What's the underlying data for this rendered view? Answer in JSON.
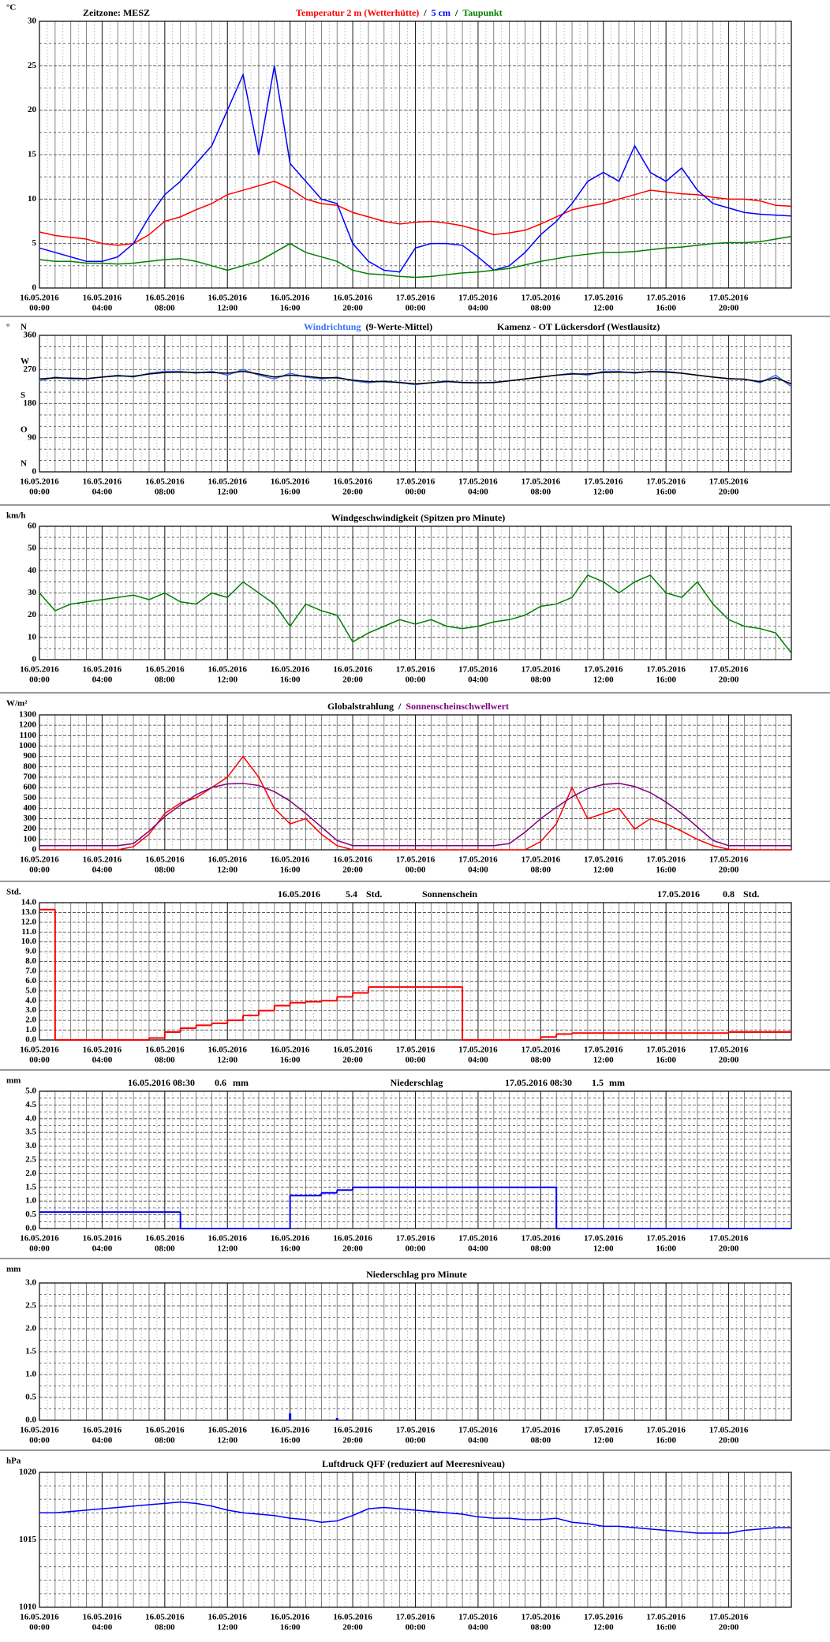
{
  "time_axis": {
    "xlim": [
      0,
      48
    ],
    "x": [
      0,
      1,
      2,
      3,
      4,
      5,
      6,
      7,
      8,
      9,
      10,
      11,
      12,
      13,
      14,
      15,
      16,
      17,
      18,
      19,
      20,
      21,
      22,
      23,
      24,
      25,
      26,
      27,
      28,
      29,
      30,
      31,
      32,
      33,
      34,
      35,
      36,
      37,
      38,
      39,
      40,
      41,
      42,
      43,
      44,
      45,
      46,
      47,
      48
    ],
    "xticks": [
      {
        "value": 0,
        "label": [
          "16.05.2016",
          "00:00"
        ]
      },
      {
        "value": 4,
        "label": [
          "16.05.2016",
          "04:00"
        ]
      },
      {
        "value": 8,
        "label": [
          "16.05.2016",
          "08:00"
        ]
      },
      {
        "value": 12,
        "label": [
          "16.05.2016",
          "12:00"
        ]
      },
      {
        "value": 16,
        "label": [
          "16.05.2016",
          "16:00"
        ]
      },
      {
        "value": 20,
        "label": [
          "16.05.2016",
          "20:00"
        ]
      },
      {
        "value": 24,
        "label": [
          "17.05.2016",
          "00:00"
        ]
      },
      {
        "value": 28,
        "label": [
          "17.05.2016",
          "04:00"
        ]
      },
      {
        "value": 32,
        "label": [
          "17.05.2016",
          "08:00"
        ]
      },
      {
        "value": 36,
        "label": [
          "17.05.2016",
          "12:00"
        ]
      },
      {
        "value": 40,
        "label": [
          "17.05.2016",
          "16:00"
        ]
      },
      {
        "value": 44,
        "label": [
          "17.05.2016",
          "20:00"
        ]
      }
    ]
  },
  "chart_data": [
    {
      "type": "line",
      "unit": "°C",
      "timezone": "Zeitzone: MESZ",
      "title_separators": [
        "/",
        "/"
      ],
      "ylim": [
        0,
        30
      ],
      "yticks": [
        0,
        5,
        10,
        15,
        20,
        25,
        30
      ],
      "grid": true,
      "series": [
        {
          "name": "Temperatur 2 m (Wetterhütte)",
          "color": "#ff0000",
          "values": [
            6.3,
            5.9,
            5.7,
            5.5,
            5.0,
            4.8,
            5.0,
            6.0,
            7.5,
            8.0,
            8.8,
            9.5,
            10.5,
            11.0,
            11.5,
            12.0,
            11.2,
            10.0,
            9.5,
            9.3,
            8.5,
            8.0,
            7.5,
            7.2,
            7.4,
            7.5,
            7.3,
            7.0,
            6.5,
            6.0,
            6.2,
            6.5,
            7.2,
            8.0,
            8.8,
            9.2,
            9.5,
            10.0,
            10.5,
            11.0,
            10.8,
            10.6,
            10.5,
            10.2,
            10.0,
            10.0,
            9.8,
            9.3,
            9.2
          ]
        },
        {
          "name": "5 cm",
          "color": "#0000ff",
          "values": [
            4.5,
            4.0,
            3.5,
            3.0,
            3.0,
            3.5,
            5.0,
            8.0,
            10.5,
            12,
            14,
            16,
            20,
            24,
            15,
            25,
            14,
            12,
            10,
            9.5,
            5,
            3,
            2,
            1.8,
            4.5,
            5.0,
            5.0,
            4.8,
            3.5,
            2.0,
            2.5,
            4.0,
            6.0,
            7.5,
            9.5,
            12,
            13,
            12,
            16,
            13,
            12,
            13.5,
            11,
            9.5,
            9,
            8.5,
            8.3,
            8.2,
            8.1
          ]
        },
        {
          "name": "Taupunkt",
          "color": "#008000",
          "values": [
            3.2,
            3.0,
            3.0,
            2.8,
            2.8,
            2.7,
            2.8,
            3.0,
            3.2,
            3.3,
            3.0,
            2.5,
            2.0,
            2.5,
            3.0,
            4.0,
            5.0,
            4.0,
            3.5,
            3.0,
            2.0,
            1.6,
            1.5,
            1.3,
            1.2,
            1.3,
            1.5,
            1.7,
            1.8,
            2.0,
            2.2,
            2.6,
            3.0,
            3.3,
            3.6,
            3.8,
            4.0,
            4.0,
            4.1,
            4.3,
            4.5,
            4.6,
            4.8,
            5.0,
            5.1,
            5.1,
            5.2,
            5.5,
            5.8
          ]
        }
      ]
    },
    {
      "type": "line",
      "unit": "°",
      "subtitle": "Kamenz - OT Lückersdorf (Westlausitz)",
      "ylim": [
        0,
        360
      ],
      "yticks": [
        0,
        90,
        180,
        270,
        360
      ],
      "direction_labels": [
        "N",
        "O",
        "S",
        "W",
        "N"
      ],
      "grid": true,
      "series": [
        {
          "name": "Windrichtung",
          "color": "#3a6fff",
          "values": [
            240,
            250,
            245,
            245,
            250,
            255,
            250,
            260,
            265,
            265,
            260,
            265,
            255,
            270,
            255,
            245,
            260,
            250,
            245,
            250,
            240,
            235,
            240,
            235,
            230,
            235,
            240,
            235,
            235,
            235,
            240,
            245,
            250,
            255,
            260,
            255,
            265,
            265,
            260,
            265,
            265,
            260,
            255,
            250,
            245,
            245,
            235,
            255,
            225
          ]
        },
        {
          "name": "(9-Werte-Mittel)",
          "color": "#000000",
          "values": [
            245,
            248,
            247,
            246,
            250,
            253,
            252,
            258,
            262,
            263,
            262,
            262,
            260,
            265,
            258,
            250,
            255,
            252,
            248,
            248,
            242,
            238,
            238,
            236,
            232,
            235,
            238,
            236,
            235,
            236,
            240,
            245,
            250,
            255,
            258,
            258,
            262,
            263,
            262,
            264,
            263,
            260,
            255,
            250,
            246,
            244,
            238,
            248,
            232
          ]
        }
      ]
    },
    {
      "type": "line",
      "unit": "km/h",
      "title": "Windgeschwindigkeit (Spitzen pro Minute)",
      "ylim": [
        0,
        60
      ],
      "yticks": [
        0,
        10,
        20,
        30,
        40,
        50,
        60
      ],
      "grid": true,
      "color": "#008000",
      "values": [
        30,
        22,
        25,
        26,
        27,
        28,
        29,
        27,
        30,
        26,
        25,
        30,
        28,
        35,
        30,
        25,
        15,
        25,
        22,
        20,
        8,
        12,
        15,
        18,
        16,
        18,
        15,
        14,
        15,
        17,
        18,
        20,
        24,
        25,
        28,
        38,
        35,
        30,
        35,
        38,
        30,
        28,
        35,
        25,
        18,
        15,
        14,
        12,
        3
      ]
    },
    {
      "type": "line",
      "unit": "W/m²",
      "title_separators": [
        "/"
      ],
      "ylim": [
        0,
        1300
      ],
      "yticks": [
        0,
        100,
        200,
        300,
        400,
        500,
        600,
        700,
        800,
        900,
        1000,
        1100,
        1200,
        1300
      ],
      "grid": true,
      "series": [
        {
          "name": "Globalstrahlung",
          "color": "#ff0000",
          "values": [
            0,
            0,
            0,
            0,
            0,
            0,
            30,
            150,
            350,
            450,
            500,
            600,
            700,
            900,
            700,
            400,
            250,
            300,
            150,
            40,
            0,
            0,
            0,
            0,
            0,
            0,
            0,
            0,
            0,
            0,
            0,
            0,
            80,
            250,
            600,
            300,
            350,
            400,
            200,
            300,
            250,
            180,
            100,
            40,
            5,
            0,
            0,
            0,
            0
          ]
        },
        {
          "name": "Sonnenscheinschwellwert",
          "color": "#800080",
          "values": [
            40,
            40,
            40,
            40,
            40,
            40,
            60,
            180,
            320,
            430,
            530,
            600,
            635,
            640,
            620,
            560,
            470,
            350,
            220,
            90,
            40,
            40,
            40,
            40,
            40,
            40,
            40,
            40,
            40,
            40,
            60,
            170,
            300,
            410,
            510,
            590,
            630,
            640,
            610,
            550,
            460,
            350,
            220,
            90,
            40,
            40,
            40,
            40,
            40
          ]
        }
      ]
    },
    {
      "type": "step",
      "unit": "Std.",
      "title": "Sonnenschein",
      "summaries": [
        {
          "date": "16.05.2016",
          "value": 5.4,
          "unit": "Std."
        },
        {
          "date": "17.05.2016",
          "value": 0.8,
          "unit": "Std."
        }
      ],
      "ylim": [
        0,
        14
      ],
      "yticks": [
        {
          "value": 0,
          "label": "0.0"
        },
        {
          "value": 1,
          "label": "1.0"
        },
        {
          "value": 2,
          "label": "2.0"
        },
        {
          "value": 3,
          "label": "3.0"
        },
        {
          "value": 4,
          "label": "4.0"
        },
        {
          "value": 5,
          "label": "5.0"
        },
        {
          "value": 6,
          "label": "6.0"
        },
        {
          "value": 7,
          "label": "7.0"
        },
        {
          "value": 8,
          "label": "8.0"
        },
        {
          "value": 9,
          "label": "9.0"
        },
        {
          "value": 10,
          "label": "10.0"
        },
        {
          "value": 11,
          "label": "11.0"
        },
        {
          "value": 12,
          "label": "12.0"
        },
        {
          "value": 13,
          "label": "13.0"
        },
        {
          "value": 14,
          "label": "14.0"
        }
      ],
      "grid": true,
      "color": "#ff0000",
      "values": [
        13.3,
        0,
        0,
        0,
        0,
        0,
        0,
        0.2,
        0.8,
        1.2,
        1.5,
        1.7,
        2.0,
        2.5,
        3.0,
        3.5,
        3.8,
        3.9,
        4.0,
        4.4,
        4.8,
        5.4,
        5.4,
        5.4,
        5.4,
        5.4,
        5.4,
        0,
        0,
        0,
        0,
        0,
        0.3,
        0.6,
        0.7,
        0.7,
        0.7,
        0.7,
        0.7,
        0.7,
        0.7,
        0.7,
        0.7,
        0.7,
        0.8,
        0.8,
        0.8,
        0.8,
        0.8
      ]
    },
    {
      "type": "step",
      "unit": "mm",
      "title": "Niederschlag",
      "summaries": [
        {
          "date": "16.05.2016 08:30",
          "value": 0.6,
          "unit": "mm"
        },
        {
          "date": "17.05.2016 08:30",
          "value": 1.5,
          "unit": "mm"
        }
      ],
      "ylim": [
        0,
        5
      ],
      "yticks": [
        {
          "value": 0,
          "label": "0.0"
        },
        {
          "value": 0.5,
          "label": "0.5"
        },
        {
          "value": 1,
          "label": "1.0"
        },
        {
          "value": 1.5,
          "label": "1.5"
        },
        {
          "value": 2,
          "label": "2.0"
        },
        {
          "value": 2.5,
          "label": "2.5"
        },
        {
          "value": 3,
          "label": "3.0"
        },
        {
          "value": 3.5,
          "label": "3.5"
        },
        {
          "value": 4,
          "label": "4.0"
        },
        {
          "value": 4.5,
          "label": "4.5"
        },
        {
          "value": 5,
          "label": "5.0"
        }
      ],
      "grid": true,
      "color": "#0000ff",
      "values": [
        0.6,
        0.6,
        0.6,
        0.6,
        0.6,
        0.6,
        0.6,
        0.6,
        0.6,
        0,
        0,
        0,
        0,
        0,
        0,
        0,
        1.2,
        1.2,
        1.3,
        1.4,
        1.5,
        1.5,
        1.5,
        1.5,
        1.5,
        1.5,
        1.5,
        1.5,
        1.5,
        1.5,
        1.5,
        1.5,
        1.5,
        0,
        0,
        0,
        0,
        0,
        0,
        0,
        0,
        0,
        0,
        0,
        0,
        0,
        0,
        0,
        0
      ]
    },
    {
      "type": "bar",
      "unit": "mm",
      "title": "Niederschlag pro Minute",
      "ylim": [
        0,
        3
      ],
      "yticks": [
        {
          "value": 0,
          "label": "0.0"
        },
        {
          "value": 0.5,
          "label": "0.5"
        },
        {
          "value": 1,
          "label": "1.0"
        },
        {
          "value": 1.5,
          "label": "1.5"
        },
        {
          "value": 2,
          "label": "2.0"
        },
        {
          "value": 2.5,
          "label": "2.5"
        },
        {
          "value": 3,
          "label": "3.0"
        }
      ],
      "grid": true,
      "color": "#0000ff",
      "values": [
        0,
        0,
        0,
        0,
        0,
        0,
        0,
        0,
        0,
        0,
        0,
        0,
        0,
        0,
        0,
        0,
        0.15,
        0,
        0,
        0.05,
        0,
        0,
        0,
        0,
        0,
        0,
        0,
        0,
        0,
        0,
        0,
        0,
        0,
        0,
        0,
        0,
        0,
        0,
        0,
        0,
        0,
        0,
        0,
        0,
        0,
        0,
        0,
        0,
        0
      ]
    },
    {
      "type": "line",
      "unit": "hPa",
      "title": "Luftdruck QFF (reduziert auf Meeresniveau)",
      "ylim": [
        1010,
        1020
      ],
      "yticks": [
        1010,
        1015,
        1020
      ],
      "grid": true,
      "color": "#0000ff",
      "values": [
        1017.0,
        1017.0,
        1017.1,
        1017.2,
        1017.3,
        1017.4,
        1017.5,
        1017.6,
        1017.7,
        1017.8,
        1017.7,
        1017.5,
        1017.2,
        1017.0,
        1016.9,
        1016.8,
        1016.6,
        1016.5,
        1016.3,
        1016.4,
        1016.8,
        1017.3,
        1017.4,
        1017.3,
        1017.2,
        1017.1,
        1017.0,
        1016.9,
        1016.7,
        1016.6,
        1016.6,
        1016.5,
        1016.5,
        1016.6,
        1016.3,
        1016.2,
        1016.0,
        1016.0,
        1015.9,
        1015.8,
        1015.7,
        1015.6,
        1015.5,
        1015.5,
        1015.5,
        1015.7,
        1015.8,
        1015.9,
        1015.9
      ]
    }
  ]
}
